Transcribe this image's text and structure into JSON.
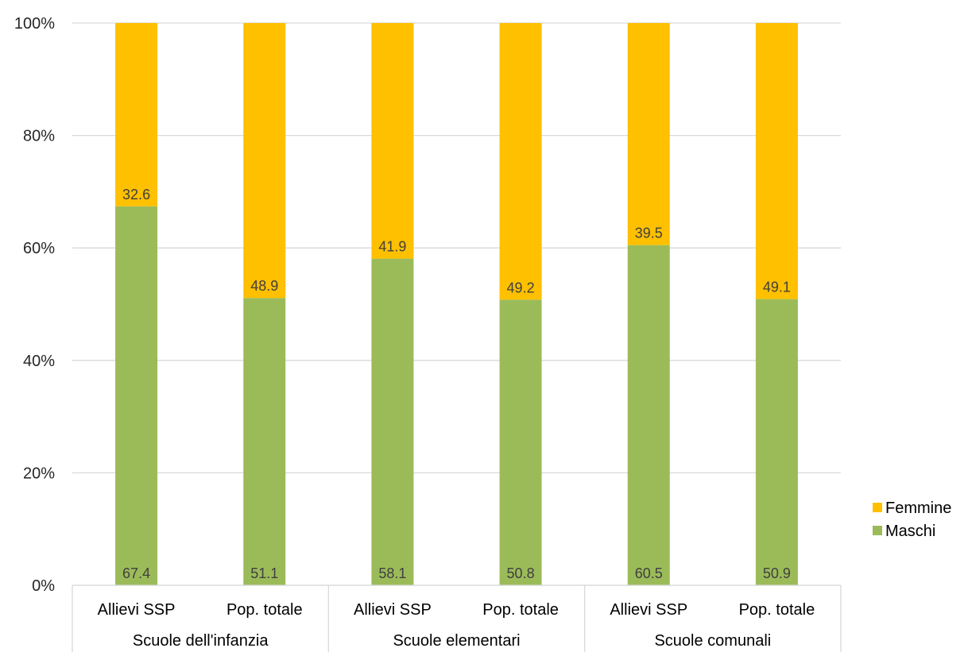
{
  "chart_data": {
    "type": "bar",
    "stacked": true,
    "percent_stacked": true,
    "categories": [
      "Allievi SSP",
      "Pop. totale",
      "Allievi SSP",
      "Pop. totale",
      "Allievi SSP",
      "Pop. totale"
    ],
    "groups": [
      {
        "label": "Scuole dell'infanzia",
        "span": 2
      },
      {
        "label": "Scuole elementari",
        "span": 2
      },
      {
        "label": "Scuole comunali",
        "span": 2
      }
    ],
    "series": [
      {
        "name": "Maschi",
        "color": "#9bbb59",
        "values": [
          67.4,
          51.1,
          58.1,
          50.8,
          60.5,
          50.9
        ]
      },
      {
        "name": "Femmine",
        "color": "#ffc000",
        "values": [
          32.6,
          48.9,
          41.9,
          49.2,
          39.5,
          49.1
        ]
      }
    ],
    "ylim": [
      0,
      100
    ],
    "yticks": [
      "0%",
      "20%",
      "40%",
      "60%",
      "80%",
      "100%"
    ],
    "grid": true,
    "legend": "right",
    "legend_order": [
      "Femmine",
      "Maschi"
    ]
  }
}
